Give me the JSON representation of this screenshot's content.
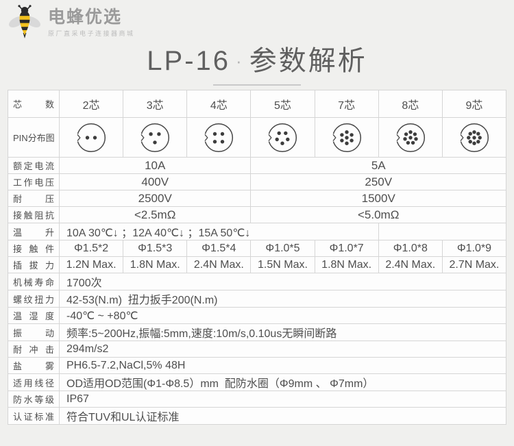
{
  "logo": {
    "brand": "电蜂优选",
    "tagline": "原厂直采电子连接器商城"
  },
  "title": {
    "model": "LP-16",
    "separator": "·",
    "suffix": "参数解析"
  },
  "table": {
    "core_row": {
      "label": "芯数",
      "cells": [
        "2芯",
        "3芯",
        "4芯",
        "5芯",
        "7芯",
        "8芯",
        "9芯"
      ]
    },
    "pin_row": {
      "label": "PIN分布图",
      "pin_counts": [
        2,
        3,
        4,
        5,
        7,
        8,
        9
      ]
    },
    "split_rows": [
      {
        "label": "额定电流",
        "left": "10A",
        "right": "5A"
      },
      {
        "label": "工作电压",
        "left": "400V",
        "right": "250V"
      },
      {
        "label": "耐压",
        "left": "2500V",
        "right": "1500V"
      },
      {
        "label": "接触阻抗",
        "left": "<2.5mΩ",
        "right": "<5.0mΩ"
      }
    ],
    "temp_rise_row": {
      "label": "温升",
      "value": "10A 30℃↓ ；12A 40℃↓ ；15A 50℃↓"
    },
    "contact_row": {
      "label": "接触件",
      "cells": [
        "Φ1.5*2",
        "Φ1.5*3",
        "Φ1.5*4",
        "Φ1.0*5",
        "Φ1.0*7",
        "Φ1.0*8",
        "Φ1.0*9"
      ]
    },
    "force_row": {
      "label": "插拔力",
      "cells": [
        "1.2N Max.",
        "1.8N Max.",
        "2.4N Max.",
        "1.5N Max.",
        "1.8N Max.",
        "2.4N Max.",
        "2.7N Max."
      ]
    },
    "full_rows": [
      {
        "label": "机械寿命",
        "value": "1700次"
      },
      {
        "label": "螺纹扭力",
        "value": "42-53(N.m)  扭力扳手200(N.m)"
      },
      {
        "label": "温湿度",
        "value": "-40℃ ~ +80℃"
      },
      {
        "label": "振动",
        "value": "频率:5~200Hz,振幅:5mm,速度:10m/s,0.10us无瞬间断路"
      },
      {
        "label": "耐冲击",
        "value": "294m/s2"
      },
      {
        "label": "盐雾",
        "value": "PH6.5-7.2,NaCl,5% 48H"
      },
      {
        "label": "适用线径",
        "value": "OD适用OD范围(Φ1-Φ8.5）mm  配防水圈（Φ9mm 、 Φ7mm）"
      },
      {
        "label": "防水等级",
        "value": "IP67"
      },
      {
        "label": "认证标准",
        "value": "符合TUV和UL认证标准"
      }
    ]
  },
  "colors": {
    "page_bg": "#f0f0ee",
    "cell_bg": "#fdfdfd",
    "border_outer": "#898989",
    "border_inner": "#d5d5d5",
    "text": "#4e4e4e",
    "bee_yellow": "#f2c11e",
    "bee_black": "#2b2b2b",
    "wing_gray": "#d9d9d9"
  }
}
